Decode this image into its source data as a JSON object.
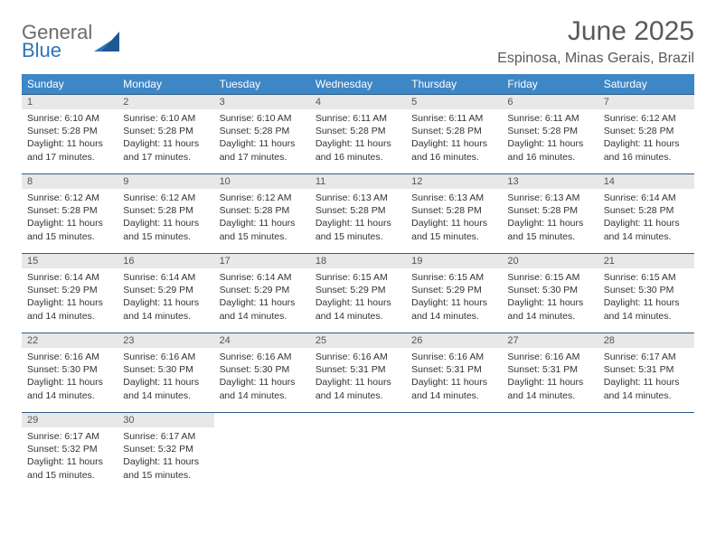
{
  "logo": {
    "general": "General",
    "blue": "Blue"
  },
  "header": {
    "month_title": "June 2025",
    "location": "Espinosa, Minas Gerais, Brazil"
  },
  "weekdays": [
    "Sunday",
    "Monday",
    "Tuesday",
    "Wednesday",
    "Thursday",
    "Friday",
    "Saturday"
  ],
  "colors": {
    "header_bg": "#3d87c7",
    "header_text": "#ffffff",
    "row_border": "#2f5d8a",
    "daynum_bg": "#e8e8e8",
    "logo_general": "#6b6b6b",
    "logo_blue": "#2976b9",
    "title_color": "#595959",
    "body_text": "#333333"
  },
  "grid": {
    "rows": 5,
    "cols": 7
  },
  "days": [
    {
      "n": "1",
      "sunrise": "6:10 AM",
      "sunset": "5:28 PM",
      "daylight": "11 hours and 17 minutes."
    },
    {
      "n": "2",
      "sunrise": "6:10 AM",
      "sunset": "5:28 PM",
      "daylight": "11 hours and 17 minutes."
    },
    {
      "n": "3",
      "sunrise": "6:10 AM",
      "sunset": "5:28 PM",
      "daylight": "11 hours and 17 minutes."
    },
    {
      "n": "4",
      "sunrise": "6:11 AM",
      "sunset": "5:28 PM",
      "daylight": "11 hours and 16 minutes."
    },
    {
      "n": "5",
      "sunrise": "6:11 AM",
      "sunset": "5:28 PM",
      "daylight": "11 hours and 16 minutes."
    },
    {
      "n": "6",
      "sunrise": "6:11 AM",
      "sunset": "5:28 PM",
      "daylight": "11 hours and 16 minutes."
    },
    {
      "n": "7",
      "sunrise": "6:12 AM",
      "sunset": "5:28 PM",
      "daylight": "11 hours and 16 minutes."
    },
    {
      "n": "8",
      "sunrise": "6:12 AM",
      "sunset": "5:28 PM",
      "daylight": "11 hours and 15 minutes."
    },
    {
      "n": "9",
      "sunrise": "6:12 AM",
      "sunset": "5:28 PM",
      "daylight": "11 hours and 15 minutes."
    },
    {
      "n": "10",
      "sunrise": "6:12 AM",
      "sunset": "5:28 PM",
      "daylight": "11 hours and 15 minutes."
    },
    {
      "n": "11",
      "sunrise": "6:13 AM",
      "sunset": "5:28 PM",
      "daylight": "11 hours and 15 minutes."
    },
    {
      "n": "12",
      "sunrise": "6:13 AM",
      "sunset": "5:28 PM",
      "daylight": "11 hours and 15 minutes."
    },
    {
      "n": "13",
      "sunrise": "6:13 AM",
      "sunset": "5:28 PM",
      "daylight": "11 hours and 15 minutes."
    },
    {
      "n": "14",
      "sunrise": "6:14 AM",
      "sunset": "5:28 PM",
      "daylight": "11 hours and 14 minutes."
    },
    {
      "n": "15",
      "sunrise": "6:14 AM",
      "sunset": "5:29 PM",
      "daylight": "11 hours and 14 minutes."
    },
    {
      "n": "16",
      "sunrise": "6:14 AM",
      "sunset": "5:29 PM",
      "daylight": "11 hours and 14 minutes."
    },
    {
      "n": "17",
      "sunrise": "6:14 AM",
      "sunset": "5:29 PM",
      "daylight": "11 hours and 14 minutes."
    },
    {
      "n": "18",
      "sunrise": "6:15 AM",
      "sunset": "5:29 PM",
      "daylight": "11 hours and 14 minutes."
    },
    {
      "n": "19",
      "sunrise": "6:15 AM",
      "sunset": "5:29 PM",
      "daylight": "11 hours and 14 minutes."
    },
    {
      "n": "20",
      "sunrise": "6:15 AM",
      "sunset": "5:30 PM",
      "daylight": "11 hours and 14 minutes."
    },
    {
      "n": "21",
      "sunrise": "6:15 AM",
      "sunset": "5:30 PM",
      "daylight": "11 hours and 14 minutes."
    },
    {
      "n": "22",
      "sunrise": "6:16 AM",
      "sunset": "5:30 PM",
      "daylight": "11 hours and 14 minutes."
    },
    {
      "n": "23",
      "sunrise": "6:16 AM",
      "sunset": "5:30 PM",
      "daylight": "11 hours and 14 minutes."
    },
    {
      "n": "24",
      "sunrise": "6:16 AM",
      "sunset": "5:30 PM",
      "daylight": "11 hours and 14 minutes."
    },
    {
      "n": "25",
      "sunrise": "6:16 AM",
      "sunset": "5:31 PM",
      "daylight": "11 hours and 14 minutes."
    },
    {
      "n": "26",
      "sunrise": "6:16 AM",
      "sunset": "5:31 PM",
      "daylight": "11 hours and 14 minutes."
    },
    {
      "n": "27",
      "sunrise": "6:16 AM",
      "sunset": "5:31 PM",
      "daylight": "11 hours and 14 minutes."
    },
    {
      "n": "28",
      "sunrise": "6:17 AM",
      "sunset": "5:31 PM",
      "daylight": "11 hours and 14 minutes."
    },
    {
      "n": "29",
      "sunrise": "6:17 AM",
      "sunset": "5:32 PM",
      "daylight": "11 hours and 15 minutes."
    },
    {
      "n": "30",
      "sunrise": "6:17 AM",
      "sunset": "5:32 PM",
      "daylight": "11 hours and 15 minutes."
    }
  ],
  "labels": {
    "sunrise": "Sunrise:",
    "sunset": "Sunset:",
    "daylight": "Daylight:"
  }
}
